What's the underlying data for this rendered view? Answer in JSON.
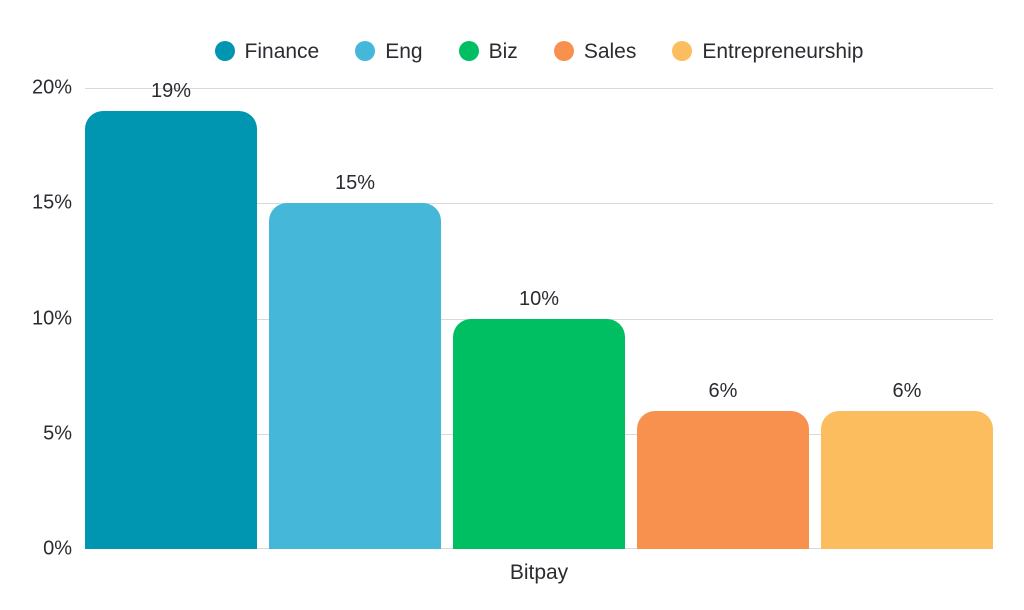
{
  "chart_data": {
    "type": "bar",
    "categories": [
      "Finance",
      "Eng",
      "Biz",
      "Sales",
      "Entrepreneurship"
    ],
    "values": [
      19,
      15,
      10,
      6,
      6
    ],
    "value_labels": [
      "19%",
      "15%",
      "10%",
      "6%",
      "6%"
    ],
    "colors": [
      "#0095b0",
      "#45b7d8",
      "#00bf63",
      "#f9914e",
      "#fcbd5e"
    ],
    "title": "",
    "xlabel": "Bitpay",
    "ylabel": "",
    "ylim": [
      0,
      20
    ],
    "yticks": [
      {
        "value": 0,
        "label": "0%"
      },
      {
        "value": 5,
        "label": "5%"
      },
      {
        "value": 10,
        "label": "10%"
      },
      {
        "value": 15,
        "label": "15%"
      },
      {
        "value": 20,
        "label": "20%"
      }
    ],
    "grid": true,
    "legend_position": "top"
  },
  "style": {
    "text_color": "#2b2b31",
    "gridline_color": "#d9d9d9",
    "background": "#ffffff"
  }
}
